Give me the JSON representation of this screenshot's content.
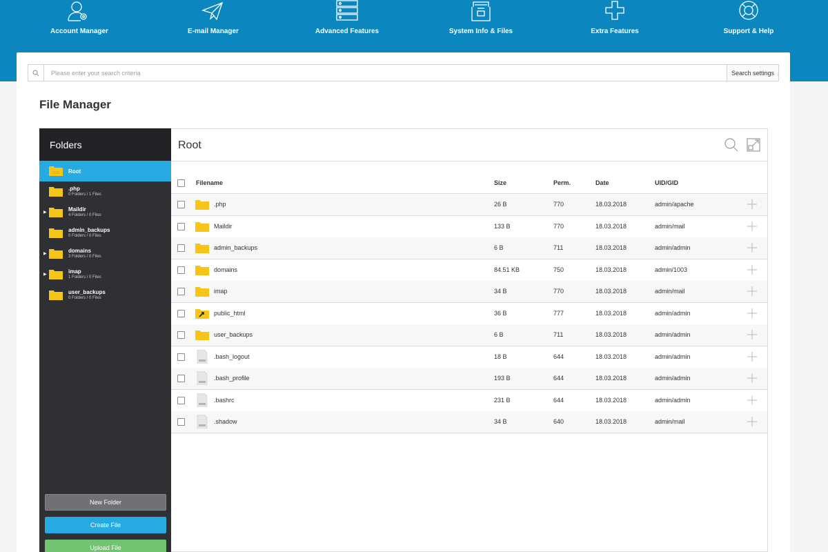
{
  "nav": [
    {
      "label": "Account Manager",
      "icon": "account-manager-icon"
    },
    {
      "label": "E-mail Manager",
      "icon": "paper-plane-icon"
    },
    {
      "label": "Advanced Features",
      "icon": "server-icon"
    },
    {
      "label": "System Info & Files",
      "icon": "file-cabinet-icon"
    },
    {
      "label": "Extra Features",
      "icon": "plus-icon"
    },
    {
      "label": "Support & Help",
      "icon": "lifebuoy-icon"
    }
  ],
  "search": {
    "placeholder": "Please enter your search criteria",
    "settings_label": "Search settings"
  },
  "page_title": "File Manager",
  "sidebar": {
    "title": "Folders",
    "items": [
      {
        "name": "Root",
        "meta": ""
      },
      {
        "name": ".php",
        "meta": "0 Folders / 1 Files"
      },
      {
        "name": "Maildir",
        "meta": "4 Folders / 0 Files"
      },
      {
        "name": "admin_backups",
        "meta": "0 Folders / 0 Files"
      },
      {
        "name": "domains",
        "meta": "3 Folders / 0 Files"
      },
      {
        "name": "imap",
        "meta": "1 Folders / 0 Files"
      },
      {
        "name": "user_backups",
        "meta": "0 Folders / 0 Files"
      }
    ],
    "buttons": {
      "new_folder": "New Folder",
      "create_file": "Create File",
      "upload_file": "Upload File"
    }
  },
  "main": {
    "title": "Root",
    "columns": {
      "filename": "Filename",
      "size": "Size",
      "perm": "Perm.",
      "date": "Date",
      "uid": "UID/GID"
    },
    "rows": [
      {
        "name": ".php",
        "type": "folder",
        "size": "26 B",
        "perm": "770",
        "date": "18.03.2018",
        "uid": "admin/apache"
      },
      {
        "name": "Maildir",
        "type": "folder",
        "size": "133 B",
        "perm": "770",
        "date": "18.03.2018",
        "uid": "admin/mail"
      },
      {
        "name": "admin_backups",
        "type": "folder",
        "size": "6 B",
        "perm": "711",
        "date": "18.03.2018",
        "uid": "admin/admin"
      },
      {
        "name": "domains",
        "type": "folder",
        "size": "84.51 KB",
        "perm": "750",
        "date": "18.03.2018",
        "uid": "admin/1003"
      },
      {
        "name": "imap",
        "type": "folder",
        "size": "34 B",
        "perm": "770",
        "date": "18.03.2018",
        "uid": "admin/mail"
      },
      {
        "name": "public_html",
        "type": "folder-link",
        "size": "36 B",
        "perm": "777",
        "date": "18.03.2018",
        "uid": "admin/admin"
      },
      {
        "name": "user_backups",
        "type": "folder",
        "size": "6 B",
        "perm": "711",
        "date": "18.03.2018",
        "uid": "admin/admin"
      },
      {
        "name": ".bash_logout",
        "type": "file",
        "size": "18 B",
        "perm": "644",
        "date": "18.03.2018",
        "uid": "admin/admin"
      },
      {
        "name": ".bash_profile",
        "type": "file",
        "size": "193 B",
        "perm": "644",
        "date": "18.03.2018",
        "uid": "admin/admin"
      },
      {
        "name": ".bashrc",
        "type": "file",
        "size": "231 B",
        "perm": "644",
        "date": "18.03.2018",
        "uid": "admin/admin"
      },
      {
        "name": ".shadow",
        "type": "file",
        "size": "34 B",
        "perm": "640",
        "date": "18.03.2018",
        "uid": "admin/mail"
      }
    ]
  },
  "colors": {
    "brand_blue": "#0b86bf",
    "accent_blue": "#26aae1",
    "sidebar_dark": "#2f3034",
    "folder_yellow": "#f5c518",
    "upload_green": "#72c472"
  }
}
